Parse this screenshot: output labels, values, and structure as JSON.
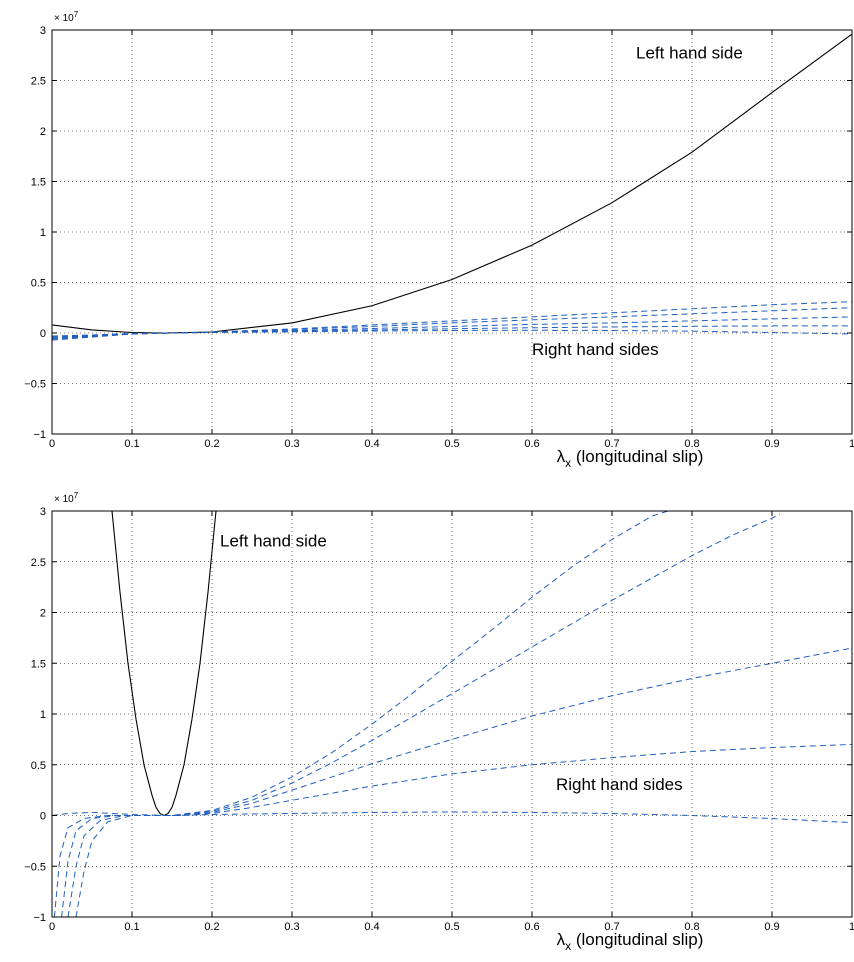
{
  "chart_data": [
    {
      "type": "line",
      "xlabel_symbol": "λ",
      "xlabel_sub": "x",
      "xlabel_text": " (longitudinal slip)",
      "ylabel": "",
      "y_multiplier_base": "× 10",
      "y_multiplier_exp": "7",
      "xlim": [
        0,
        1
      ],
      "ylim": [
        -1,
        3
      ],
      "xticks": [
        0,
        0.1,
        0.2,
        0.3,
        0.4,
        0.5,
        0.6,
        0.7,
        0.8,
        0.9,
        1
      ],
      "xtick_labels": [
        "0",
        "0.1",
        "0.2",
        "0.3",
        "0.4",
        "0.5",
        "0.6",
        "0.7",
        "0.8",
        "0.9",
        "1"
      ],
      "yticks": [
        -1,
        -0.5,
        0,
        0.5,
        1,
        1.5,
        2,
        2.5,
        3
      ],
      "ytick_labels": [
        "−1",
        "−0.5",
        "0",
        "0.5",
        "1",
        "1.5",
        "2",
        "2.5",
        "3"
      ],
      "grid": true,
      "annotations": [
        {
          "text": "Left hand side",
          "x": 0.73,
          "y": 2.72
        },
        {
          "text": "Right hand sides",
          "x": 0.6,
          "y": -0.22
        }
      ],
      "series": [
        {
          "style": "solid",
          "color": "#000000",
          "x": [
            0,
            0.05,
            0.1,
            0.14,
            0.2,
            0.3,
            0.4,
            0.5,
            0.6,
            0.7,
            0.8,
            0.9,
            1.0
          ],
          "y": [
            0.08,
            0.03,
            0.005,
            0,
            0.01,
            0.1,
            0.27,
            0.53,
            0.87,
            1.29,
            1.79,
            2.38,
            2.96
          ]
        },
        {
          "style": "dashed",
          "color": "#1f5fbf",
          "x": [
            0,
            0.05,
            0.1,
            0.15,
            0.2,
            0.3,
            0.4,
            0.5,
            0.6,
            0.7,
            0.8,
            0.9,
            1.0
          ],
          "y": [
            -0.07,
            -0.04,
            -0.01,
            0,
            0.01,
            0.04,
            0.08,
            0.12,
            0.16,
            0.2,
            0.24,
            0.28,
            0.31
          ]
        },
        {
          "style": "dashed",
          "color": "#1f5fbf",
          "x": [
            0,
            0.05,
            0.1,
            0.15,
            0.2,
            0.3,
            0.4,
            0.5,
            0.6,
            0.7,
            0.8,
            0.9,
            1.0
          ],
          "y": [
            -0.06,
            -0.035,
            -0.01,
            0,
            0.01,
            0.035,
            0.065,
            0.1,
            0.13,
            0.16,
            0.19,
            0.22,
            0.25
          ]
        },
        {
          "style": "dashed",
          "color": "#1f5fbf",
          "x": [
            0,
            0.05,
            0.1,
            0.15,
            0.2,
            0.3,
            0.4,
            0.5,
            0.6,
            0.7,
            0.8,
            0.9,
            1.0
          ],
          "y": [
            -0.05,
            -0.03,
            -0.008,
            0,
            0.008,
            0.025,
            0.045,
            0.065,
            0.085,
            0.1,
            0.12,
            0.14,
            0.16
          ]
        },
        {
          "style": "dashed",
          "color": "#1f5fbf",
          "x": [
            0,
            0.05,
            0.1,
            0.15,
            0.2,
            0.3,
            0.4,
            0.5,
            0.6,
            0.7,
            0.8,
            0.9,
            1.0
          ],
          "y": [
            -0.04,
            -0.025,
            -0.006,
            0,
            0.006,
            0.018,
            0.03,
            0.042,
            0.052,
            0.06,
            0.066,
            0.07,
            0.07
          ]
        },
        {
          "style": "dashed",
          "color": "#1f5fbf",
          "x": [
            0,
            0.05,
            0.1,
            0.15,
            0.2,
            0.3,
            0.4,
            0.5,
            0.6,
            0.7,
            0.8,
            0.9,
            1.0
          ],
          "y": [
            -0.03,
            -0.02,
            -0.005,
            0,
            0.005,
            0.012,
            0.02,
            0.025,
            0.027,
            0.025,
            0.018,
            0.005,
            -0.01
          ]
        }
      ]
    },
    {
      "type": "line",
      "xlabel_symbol": "λ",
      "xlabel_sub": "x",
      "xlabel_text": " (longitudinal slip)",
      "ylabel": "",
      "y_multiplier_base": "× 10",
      "y_multiplier_exp": "7",
      "xlim": [
        0,
        1
      ],
      "ylim": [
        -1,
        3
      ],
      "xticks": [
        0,
        0.1,
        0.2,
        0.3,
        0.4,
        0.5,
        0.6,
        0.7,
        0.8,
        0.9,
        1
      ],
      "xtick_labels": [
        "0",
        "0.1",
        "0.2",
        "0.3",
        "0.4",
        "0.5",
        "0.6",
        "0.7",
        "0.8",
        "0.9",
        "1"
      ],
      "yticks": [
        -1,
        -0.5,
        0,
        0.5,
        1,
        1.5,
        2,
        2.5,
        3
      ],
      "ytick_labels": [
        "−1",
        "−0.5",
        "0",
        "0.5",
        "1",
        "1.5",
        "2",
        "2.5",
        "3"
      ],
      "grid": true,
      "annotations": [
        {
          "text": "Left hand side",
          "x": 0.21,
          "y": 2.65
        },
        {
          "text": "Right hand sides",
          "x": 0.63,
          "y": 0.25
        }
      ],
      "series": [
        {
          "style": "solid",
          "color": "#000000",
          "x": [
            0.075,
            0.085,
            0.095,
            0.105,
            0.115,
            0.125,
            0.13,
            0.135,
            0.14,
            0.145,
            0.15,
            0.155,
            0.165,
            0.175,
            0.185,
            0.195,
            0.205
          ],
          "y": [
            3.0,
            2.2,
            1.5,
            0.95,
            0.5,
            0.2,
            0.08,
            0.02,
            0,
            0.02,
            0.08,
            0.2,
            0.5,
            0.95,
            1.5,
            2.2,
            3.0
          ]
        },
        {
          "style": "dashed",
          "color": "#1f5fbf",
          "x": [
            0.003,
            0.01,
            0.02,
            0.04,
            0.07,
            0.1,
            0.15,
            0.2,
            0.25,
            0.3,
            0.35,
            0.4,
            0.45,
            0.5,
            0.55,
            0.6,
            0.65,
            0.7,
            0.75,
            0.77
          ],
          "y": [
            -1.0,
            -0.4,
            -0.12,
            -0.03,
            0,
            0,
            0,
            0.05,
            0.18,
            0.38,
            0.62,
            0.9,
            1.2,
            1.52,
            1.83,
            2.15,
            2.45,
            2.72,
            2.95,
            3.0
          ]
        },
        {
          "style": "dashed",
          "color": "#1f5fbf",
          "x": [
            0.012,
            0.02,
            0.03,
            0.05,
            0.08,
            0.1,
            0.15,
            0.2,
            0.25,
            0.3,
            0.35,
            0.4,
            0.45,
            0.5,
            0.55,
            0.6,
            0.65,
            0.7,
            0.75,
            0.8,
            0.85,
            0.9,
            0.91
          ],
          "y": [
            -1.0,
            -0.45,
            -0.15,
            -0.03,
            0,
            0,
            0,
            0.04,
            0.15,
            0.32,
            0.52,
            0.74,
            0.97,
            1.2,
            1.43,
            1.66,
            1.89,
            2.12,
            2.34,
            2.56,
            2.76,
            2.93,
            2.97
          ]
        },
        {
          "style": "dashed",
          "color": "#1f5fbf",
          "x": [
            0.02,
            0.03,
            0.04,
            0.06,
            0.09,
            0.12,
            0.15,
            0.2,
            0.25,
            0.3,
            0.35,
            0.4,
            0.5,
            0.6,
            0.7,
            0.8,
            0.9,
            1.0
          ],
          "y": [
            -1.0,
            -0.5,
            -0.2,
            -0.05,
            0,
            0,
            0,
            0.03,
            0.12,
            0.25,
            0.38,
            0.51,
            0.75,
            0.98,
            1.18,
            1.35,
            1.5,
            1.65
          ]
        },
        {
          "style": "dashed",
          "color": "#1f5fbf",
          "x": [
            0.03,
            0.04,
            0.05,
            0.07,
            0.1,
            0.13,
            0.16,
            0.2,
            0.25,
            0.3,
            0.35,
            0.4,
            0.5,
            0.6,
            0.7,
            0.8,
            0.9,
            1.0
          ],
          "y": [
            -1.0,
            -0.55,
            -0.25,
            -0.06,
            0,
            0,
            0,
            0.02,
            0.08,
            0.15,
            0.22,
            0.29,
            0.41,
            0.5,
            0.57,
            0.63,
            0.67,
            0.7
          ]
        },
        {
          "style": "dashed",
          "color": "#1f5fbf",
          "x": [
            0,
            0.02,
            0.05,
            0.1,
            0.15,
            0.2,
            0.3,
            0.4,
            0.5,
            0.6,
            0.7,
            0.8,
            0.9,
            1.0
          ],
          "y": [
            0,
            0.02,
            0.03,
            0.01,
            0,
            0.01,
            0.02,
            0.03,
            0.035,
            0.03,
            0.02,
            0,
            -0.03,
            -0.07
          ]
        }
      ]
    }
  ]
}
